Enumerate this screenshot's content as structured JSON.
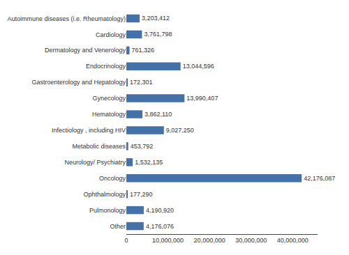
{
  "chart_data": {
    "type": "bar",
    "orientation": "horizontal",
    "categories": [
      "Autoimmune diseases (i.e. Rheumatology)",
      "Cardiology",
      "Dermatology and Venerology",
      "Endocrinology",
      "Gastroenterology and Hepatology",
      "Gynecology",
      "Hematology",
      "Infectiology , including HIV",
      "Metabolic diseases",
      "Neurology/ Psychiatry",
      "Oncology",
      "Ophthalmology",
      "Pulmonology",
      "Other"
    ],
    "values": [
      3203412,
      3761798,
      761326,
      13044596,
      172301,
      13990407,
      3862110,
      9027250,
      453792,
      1532135,
      42176087,
      177290,
      4190920,
      4176076
    ],
    "value_labels": [
      "3,203,412",
      "3,761,798",
      "761,326",
      "13,044,596",
      "172,301",
      "13,990,407",
      "3,862,110",
      "9,027,250",
      "453,792",
      "1,532,135",
      "42,176,087",
      "177,290",
      "4,190,920",
      "4,176,076"
    ],
    "data_labels": true,
    "color": "#4472a8",
    "xlim": [
      0,
      46000000
    ],
    "xticks": [
      0,
      {
        "value": 10000000,
        "label": "10,000,000"
      },
      {
        "value": 20000000,
        "label": "20,000,000"
      },
      {
        "value": 30000000,
        "label": "30,000,000"
      },
      {
        "value": 40000000,
        "label": "40,000,000"
      }
    ],
    "grid": false
  }
}
